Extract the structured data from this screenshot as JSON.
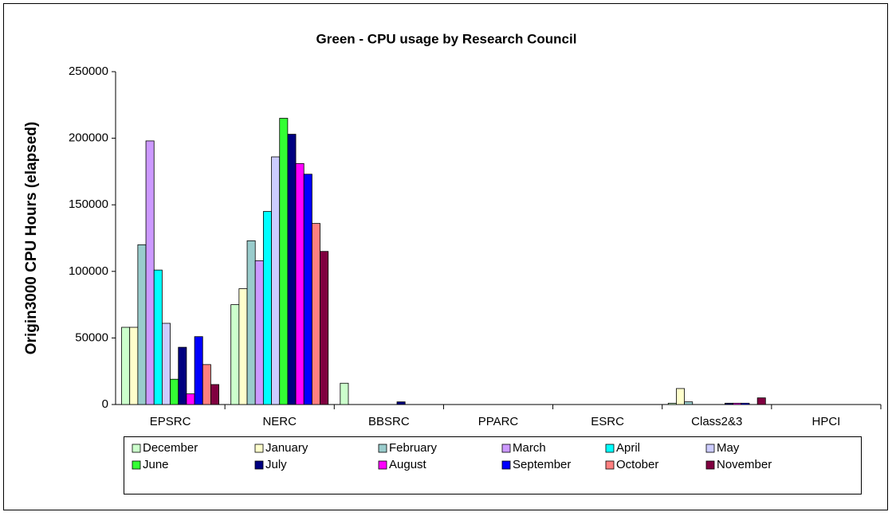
{
  "chart_data": {
    "type": "bar",
    "title": "Green - CPU usage by Research Council",
    "y_label": "Origin3000 CPU Hours (elapsed)",
    "categories": [
      "EPSRC",
      "NERC",
      "BBSRC",
      "PPARC",
      "ESRC",
      "Class2&3",
      "HPCI"
    ],
    "series": [
      {
        "name": "December",
        "color": "#ccffcc",
        "values": [
          58000,
          75000,
          16000,
          0,
          0,
          1000,
          0
        ]
      },
      {
        "name": "January",
        "color": "#ffffcc",
        "values": [
          58000,
          87000,
          0,
          0,
          0,
          12000,
          0
        ]
      },
      {
        "name": "February",
        "color": "#99cccc",
        "values": [
          120000,
          123000,
          0,
          0,
          0,
          2000,
          0
        ]
      },
      {
        "name": "March",
        "color": "#cc99ff",
        "values": [
          198000,
          108000,
          0,
          0,
          0,
          0,
          0
        ]
      },
      {
        "name": "April",
        "color": "#00ffff",
        "values": [
          101000,
          145000,
          0,
          0,
          0,
          0,
          0
        ]
      },
      {
        "name": "May",
        "color": "#ccccff",
        "values": [
          61000,
          186000,
          0,
          0,
          0,
          0,
          0
        ]
      },
      {
        "name": "June",
        "color": "#33ff33",
        "values": [
          19000,
          215000,
          0,
          0,
          0,
          0,
          0
        ]
      },
      {
        "name": "July",
        "color": "#000080",
        "values": [
          43000,
          203000,
          2000,
          0,
          0,
          1000,
          0
        ]
      },
      {
        "name": "August",
        "color": "#ff00ff",
        "values": [
          8000,
          181000,
          0,
          0,
          0,
          1000,
          0
        ]
      },
      {
        "name": "September",
        "color": "#0000ff",
        "values": [
          51000,
          173000,
          0,
          0,
          0,
          1000,
          0
        ]
      },
      {
        "name": "October",
        "color": "#ff8080",
        "values": [
          30000,
          136000,
          0,
          0,
          0,
          0,
          0
        ]
      },
      {
        "name": "November",
        "color": "#800040",
        "values": [
          15000,
          115000,
          0,
          0,
          0,
          5000,
          0
        ]
      }
    ],
    "ylim": [
      0,
      250000
    ],
    "yticks": [
      0,
      50000,
      100000,
      150000,
      200000,
      250000
    ],
    "grid": false
  }
}
